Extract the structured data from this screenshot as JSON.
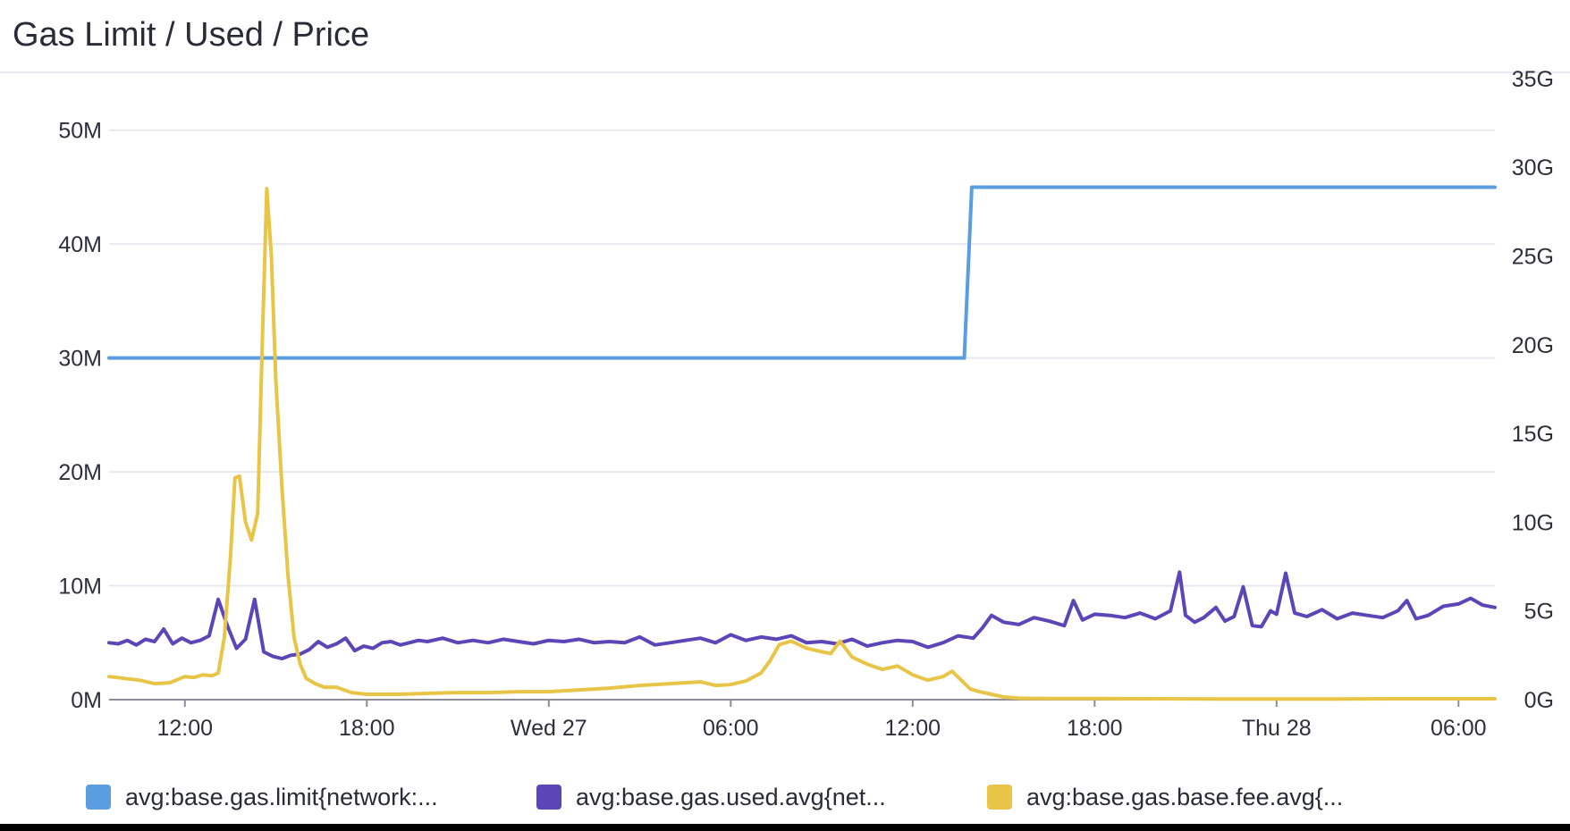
{
  "title": "Gas Limit / Used / Price",
  "chart_data": {
    "type": "line",
    "title": "Gas Limit / Used / Price",
    "x_ticks": [
      "12:00",
      "18:00",
      "Wed 27",
      "06:00",
      "12:00",
      "18:00",
      "Thu 28",
      "06:00"
    ],
    "x_tick_hours": [
      12,
      18,
      24,
      30,
      36,
      42,
      48,
      54
    ],
    "x_range_hours": [
      9.5,
      55.2
    ],
    "y_left": {
      "ticks": [
        "0M",
        "10M",
        "20M",
        "30M",
        "40M",
        "50M"
      ],
      "values": [
        0,
        10,
        20,
        30,
        40,
        50
      ],
      "range": [
        0,
        55
      ],
      "unit": "M"
    },
    "y_right": {
      "ticks": [
        "0G",
        "5G",
        "10G",
        "15G",
        "20G",
        "25G",
        "30G",
        "35G"
      ],
      "values": [
        0,
        5,
        10,
        15,
        20,
        25,
        30,
        35
      ],
      "range": [
        0,
        35.3
      ],
      "unit": "G"
    },
    "grid": true,
    "legend_position": "bottom",
    "series": [
      {
        "name": "avg:base.gas.limit{network:...",
        "axis": "left",
        "color": "#5a9de0",
        "x": [
          9.5,
          37.7,
          37.95,
          55.2
        ],
        "y": [
          30,
          30,
          45,
          45
        ]
      },
      {
        "name": "avg:base.gas.used.avg{net...",
        "axis": "left",
        "color": "#5b46b8",
        "x": [
          9.5,
          9.8,
          10.1,
          10.4,
          10.7,
          11,
          11.3,
          11.6,
          11.9,
          12.2,
          12.5,
          12.8,
          13.1,
          13.4,
          13.7,
          14,
          14.3,
          14.6,
          14.9,
          15.2,
          15.5,
          15.8,
          16.1,
          16.4,
          16.7,
          17,
          17.3,
          17.6,
          17.9,
          18.2,
          18.5,
          18.8,
          19.1,
          19.4,
          19.7,
          20,
          20.5,
          21,
          21.5,
          22,
          22.5,
          23,
          23.5,
          24,
          24.5,
          25,
          25.5,
          26,
          26.5,
          27,
          27.5,
          28,
          28.5,
          29,
          29.5,
          30,
          30.5,
          31,
          31.5,
          32,
          32.5,
          33,
          33.5,
          34,
          34.5,
          35,
          35.5,
          36,
          36.5,
          37,
          37.5,
          38,
          38.3,
          38.6,
          39,
          39.5,
          40,
          40.5,
          41,
          41.3,
          41.6,
          42,
          42.5,
          43,
          43.5,
          44,
          44.5,
          44.8,
          45,
          45.3,
          45.6,
          46,
          46.3,
          46.6,
          46.9,
          47.2,
          47.5,
          47.8,
          48,
          48.3,
          48.6,
          49,
          49.5,
          50,
          50.5,
          51,
          51.5,
          52,
          52.3,
          52.6,
          53,
          53.5,
          54,
          54.4,
          54.8,
          55.2
        ],
        "y": [
          5,
          4.9,
          5.2,
          4.8,
          5.3,
          5.1,
          6.2,
          4.9,
          5.4,
          5,
          5.2,
          5.6,
          8.8,
          6.5,
          4.5,
          5.3,
          8.8,
          4.2,
          3.8,
          3.6,
          3.9,
          4,
          4.4,
          5.1,
          4.6,
          4.9,
          5.4,
          4.3,
          4.7,
          4.5,
          5,
          5.1,
          4.8,
          5,
          5.2,
          5.1,
          5.4,
          5,
          5.2,
          5,
          5.3,
          5.1,
          4.9,
          5.2,
          5.1,
          5.3,
          5,
          5.1,
          5,
          5.5,
          4.8,
          5,
          5.2,
          5.4,
          5,
          5.7,
          5.2,
          5.5,
          5.3,
          5.6,
          5,
          5.1,
          4.9,
          5.3,
          4.7,
          5,
          5.2,
          5.1,
          4.6,
          5,
          5.6,
          5.4,
          6.3,
          7.4,
          6.8,
          6.6,
          7.2,
          6.9,
          6.5,
          8.7,
          7,
          7.5,
          7.4,
          7.2,
          7.6,
          7.1,
          7.8,
          11.2,
          7.4,
          6.8,
          7.2,
          8.1,
          6.9,
          7.3,
          9.9,
          6.5,
          6.4,
          7.8,
          7.5,
          11.1,
          7.6,
          7.3,
          7.9,
          7.1,
          7.6,
          7.4,
          7.2,
          7.8,
          8.7,
          7.1,
          7.4,
          8.2,
          8.4,
          8.9,
          8.3,
          8.1
        ]
      },
      {
        "name": "avg:base.gas.base.fee.avg{...",
        "axis": "right",
        "color": "#e8c547",
        "x": [
          9.5,
          10,
          10.5,
          11,
          11.5,
          12,
          12.3,
          12.6,
          12.9,
          13.1,
          13.3,
          13.5,
          13.65,
          13.8,
          14.0,
          14.2,
          14.4,
          14.55,
          14.7,
          14.85,
          15.0,
          15.2,
          15.4,
          15.6,
          15.8,
          16,
          16.3,
          16.6,
          17,
          17.5,
          18,
          18.5,
          19,
          20,
          21,
          22,
          23,
          24,
          25,
          26,
          27,
          28,
          29,
          29.5,
          30,
          30.5,
          31,
          31.3,
          31.6,
          32,
          32.5,
          33,
          33.3,
          33.6,
          34,
          34.5,
          35,
          35.5,
          36,
          36.5,
          37,
          37.3,
          37.6,
          37.9,
          38.2,
          38.6,
          39,
          39.5,
          40,
          41,
          42,
          44,
          46,
          48,
          50,
          52,
          54,
          55.2
        ],
        "y": [
          1.3,
          1.2,
          1.1,
          0.9,
          0.95,
          1.3,
          1.25,
          1.4,
          1.35,
          1.5,
          3.5,
          8,
          12.5,
          12.6,
          10,
          9.0,
          10.5,
          20,
          28.8,
          25,
          18,
          12,
          7,
          3.5,
          2,
          1.2,
          0.9,
          0.7,
          0.7,
          0.4,
          0.3,
          0.3,
          0.3,
          0.35,
          0.4,
          0.4,
          0.45,
          0.45,
          0.55,
          0.65,
          0.8,
          0.9,
          1.0,
          0.8,
          0.85,
          1.05,
          1.5,
          2.2,
          3.1,
          3.3,
          2.9,
          2.7,
          2.6,
          3.3,
          2.4,
          2.0,
          1.7,
          1.9,
          1.4,
          1.1,
          1.3,
          1.6,
          1.1,
          0.6,
          0.45,
          0.3,
          0.15,
          0.08,
          0.07,
          0.06,
          0.06,
          0.05,
          0.04,
          0.04,
          0.04,
          0.05,
          0.05,
          0.05
        ]
      }
    ]
  }
}
